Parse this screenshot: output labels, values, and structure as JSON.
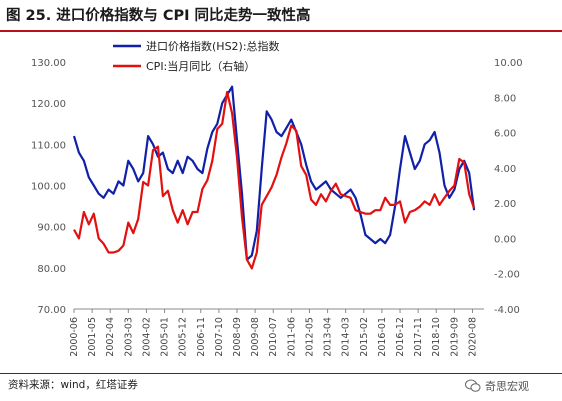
{
  "header": {
    "title": "图 25. 进口价格指数与 CPI 同比走势一致性高"
  },
  "footer": {
    "source": "资料来源：wind，红塔证券",
    "watermark": "奇思宏观"
  },
  "chart_data": {
    "type": "line",
    "y_left": {
      "ylim": [
        70,
        130
      ],
      "ticks": [
        "70.00",
        "80.00",
        "90.00",
        "100.00",
        "110.00",
        "120.00",
        "130.00"
      ]
    },
    "y_right": {
      "ylim": [
        -4,
        10
      ],
      "ticks": [
        "-4.00",
        "-2.00",
        "0.00",
        "2.00",
        "4.00",
        "6.00",
        "8.00",
        "10.00"
      ]
    },
    "x_ticks": [
      "2000-06",
      "2001-05",
      "2002-04",
      "2003-03",
      "2004-02",
      "2005-01",
      "2005-12",
      "2006-11",
      "2007-10",
      "2008-09",
      "2009-08",
      "2010-07",
      "2011-06",
      "2012-05",
      "2013-04",
      "2014-03",
      "2015-02",
      "2016-01",
      "2016-12",
      "2017-11",
      "2018-10",
      "2019-09",
      "2020-08"
    ],
    "series": [
      {
        "name": "进口价格指数(HS2):总指数",
        "color": "#1020a8",
        "axis": "left",
        "x": [
          "2000-06",
          "2000-09",
          "2000-12",
          "2001-03",
          "2001-06",
          "2001-09",
          "2001-12",
          "2002-03",
          "2002-06",
          "2002-09",
          "2002-12",
          "2003-03",
          "2003-06",
          "2003-09",
          "2003-12",
          "2004-03",
          "2004-06",
          "2004-09",
          "2004-12",
          "2005-03",
          "2005-06",
          "2005-09",
          "2005-12",
          "2006-03",
          "2006-06",
          "2006-09",
          "2006-12",
          "2007-03",
          "2007-06",
          "2007-09",
          "2007-12",
          "2008-03",
          "2008-06",
          "2008-09",
          "2008-12",
          "2009-03",
          "2009-06",
          "2009-09",
          "2009-12",
          "2010-03",
          "2010-06",
          "2010-09",
          "2010-12",
          "2011-03",
          "2011-06",
          "2011-09",
          "2011-12",
          "2012-03",
          "2012-06",
          "2012-09",
          "2012-12",
          "2013-03",
          "2013-06",
          "2013-09",
          "2013-12",
          "2014-03",
          "2014-06",
          "2014-09",
          "2014-12",
          "2015-03",
          "2015-06",
          "2015-09",
          "2015-12",
          "2016-03",
          "2016-06",
          "2016-09",
          "2016-12",
          "2017-03",
          "2017-06",
          "2017-09",
          "2017-12",
          "2018-03",
          "2018-06",
          "2018-09",
          "2018-12",
          "2019-03",
          "2019-06",
          "2019-09",
          "2019-12",
          "2020-03",
          "2020-06",
          "2020-09"
        ],
        "values": [
          112,
          108,
          106,
          102,
          100,
          98,
          97,
          99,
          98,
          101,
          100,
          106,
          104,
          101,
          103,
          112,
          110,
          107,
          108,
          104,
          103,
          106,
          103,
          107,
          106,
          104,
          103,
          109,
          113,
          115,
          120,
          122,
          124,
          111,
          98,
          82,
          83,
          89,
          104,
          118,
          116,
          113,
          112,
          114,
          116,
          113,
          110,
          105,
          101,
          99,
          100,
          101,
          99,
          98,
          97,
          98,
          99,
          97,
          93,
          88,
          87,
          86,
          87,
          86,
          88,
          95,
          104,
          112,
          108,
          104,
          106,
          110,
          111,
          113,
          108,
          100,
          97,
          99,
          104,
          106,
          103,
          94
        ]
      },
      {
        "name": "CPI:当月同比（右轴）",
        "color": "#e31010",
        "axis": "right",
        "x": [
          "2000-06",
          "2000-09",
          "2000-12",
          "2001-03",
          "2001-06",
          "2001-09",
          "2001-12",
          "2002-03",
          "2002-06",
          "2002-09",
          "2002-12",
          "2003-03",
          "2003-06",
          "2003-09",
          "2003-12",
          "2004-03",
          "2004-06",
          "2004-09",
          "2004-12",
          "2005-03",
          "2005-06",
          "2005-09",
          "2005-12",
          "2006-03",
          "2006-06",
          "2006-09",
          "2006-12",
          "2007-03",
          "2007-06",
          "2007-09",
          "2007-12",
          "2008-03",
          "2008-06",
          "2008-09",
          "2008-12",
          "2009-03",
          "2009-06",
          "2009-09",
          "2009-12",
          "2010-03",
          "2010-06",
          "2010-09",
          "2010-12",
          "2011-03",
          "2011-06",
          "2011-09",
          "2011-12",
          "2012-03",
          "2012-06",
          "2012-09",
          "2012-12",
          "2013-03",
          "2013-06",
          "2013-09",
          "2013-12",
          "2014-03",
          "2014-06",
          "2014-09",
          "2014-12",
          "2015-03",
          "2015-06",
          "2015-09",
          "2015-12",
          "2016-03",
          "2016-06",
          "2016-09",
          "2016-12",
          "2017-03",
          "2017-06",
          "2017-09",
          "2017-12",
          "2018-03",
          "2018-06",
          "2018-09",
          "2018-12",
          "2019-03",
          "2019-06",
          "2019-09",
          "2019-12",
          "2020-03",
          "2020-06",
          "2020-09"
        ],
        "values": [
          0.5,
          0.0,
          1.5,
          0.8,
          1.4,
          0.0,
          -0.3,
          -0.8,
          -0.8,
          -0.7,
          -0.4,
          0.9,
          0.3,
          1.1,
          3.2,
          3.0,
          5.0,
          5.2,
          2.4,
          2.7,
          1.6,
          0.9,
          1.6,
          0.8,
          1.5,
          1.5,
          2.8,
          3.3,
          4.4,
          6.2,
          6.5,
          8.3,
          7.1,
          4.6,
          1.2,
          -1.2,
          -1.7,
          -0.8,
          1.9,
          2.4,
          2.9,
          3.6,
          4.6,
          5.4,
          6.4,
          6.1,
          4.1,
          3.6,
          2.2,
          1.9,
          2.5,
          2.1,
          2.7,
          3.1,
          2.5,
          2.4,
          2.3,
          1.6,
          1.5,
          1.4,
          1.4,
          1.6,
          1.6,
          2.3,
          1.9,
          1.9,
          2.1,
          0.9,
          1.5,
          1.6,
          1.8,
          2.1,
          1.9,
          2.5,
          1.9,
          2.3,
          2.7,
          3.0,
          4.5,
          4.3,
          2.5,
          1.7
        ]
      }
    ],
    "legend": "top-left",
    "grid": false
  }
}
